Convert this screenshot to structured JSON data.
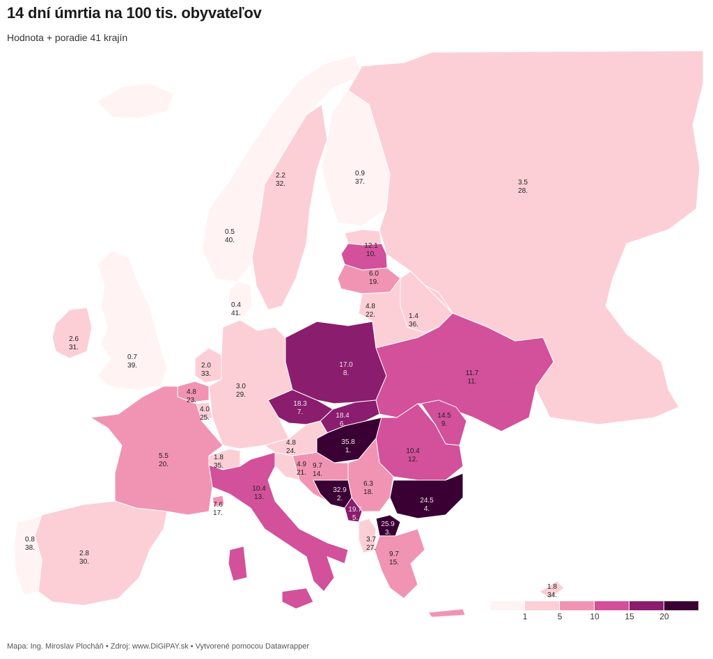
{
  "title": "14 dní úmrtia na 100 tis. obyvateľov",
  "subtitle": "Hodnota + poradie 41 krajín",
  "footer": "Mapa: Ing. Miroslav Plocháň • Zdroj: www.DiGiPAY.sk • Vytvorené pomocou Datawrapper",
  "legend": {
    "colors": [
      "#fff3f4",
      "#fccfd6",
      "#f194b3",
      "#d3509a",
      "#8a1d6e",
      "#3a0034"
    ],
    "ticks": [
      "1",
      "5",
      "10",
      "15",
      "20"
    ]
  },
  "regions": [
    {
      "id": "iceland",
      "value": null,
      "rank": null
    },
    {
      "id": "norway",
      "value": "0.5",
      "rank": "40."
    },
    {
      "id": "sweden",
      "value": "2.2",
      "rank": "32."
    },
    {
      "id": "finland",
      "value": "0.9",
      "rank": "37."
    },
    {
      "id": "russia",
      "value": "3.5",
      "rank": "28."
    },
    {
      "id": "estonia",
      "value": null,
      "rank": null
    },
    {
      "id": "latvia",
      "value": "12.1",
      "rank": "10."
    },
    {
      "id": "lithuania",
      "value": "6.0",
      "rank": "19."
    },
    {
      "id": "denmark",
      "value": "0.4",
      "rank": "41."
    },
    {
      "id": "ireland",
      "value": "2.6",
      "rank": "31."
    },
    {
      "id": "uk",
      "value": "0.7",
      "rank": "39."
    },
    {
      "id": "netherlands",
      "value": "2.0",
      "rank": "33."
    },
    {
      "id": "belgium",
      "value": "4.8",
      "rank": "23."
    },
    {
      "id": "luxembourg",
      "value": "4.0",
      "rank": "25."
    },
    {
      "id": "germany",
      "value": "3.0",
      "rank": "29."
    },
    {
      "id": "poland",
      "value": "17.0",
      "rank": "8."
    },
    {
      "id": "czechia",
      "value": "18.3",
      "rank": "7."
    },
    {
      "id": "slovakia",
      "value": "18.4",
      "rank": "6."
    },
    {
      "id": "hungary",
      "value": "35.8",
      "rank": "1."
    },
    {
      "id": "austria",
      "value": "4.8",
      "rank": "24."
    },
    {
      "id": "switzerland",
      "value": "1.8",
      "rank": "35."
    },
    {
      "id": "france",
      "value": "5.5",
      "rank": "20."
    },
    {
      "id": "belarus",
      "value": "4.8",
      "rank": "22."
    },
    {
      "id": "russia-north",
      "value": "1.4",
      "rank": "36."
    },
    {
      "id": "ukraine",
      "value": "11.7",
      "rank": "11."
    },
    {
      "id": "moldova",
      "value": "14.5",
      "rank": "9."
    },
    {
      "id": "romania",
      "value": "10.4",
      "rank": "12."
    },
    {
      "id": "bulgaria",
      "value": "24.5",
      "rank": "4."
    },
    {
      "id": "serbia",
      "value": "6.3",
      "rank": "18."
    },
    {
      "id": "croatia",
      "value": "9.7",
      "rank": "14."
    },
    {
      "id": "slovenia",
      "value": "4.9",
      "rank": "21."
    },
    {
      "id": "bosnia",
      "value": "32.9",
      "rank": "2."
    },
    {
      "id": "montenegro",
      "value": "19.7",
      "rank": "5."
    },
    {
      "id": "north-macedonia",
      "value": "25.9",
      "rank": "3."
    },
    {
      "id": "albania",
      "value": "3.7",
      "rank": "27."
    },
    {
      "id": "greece",
      "value": "9.7",
      "rank": "15."
    },
    {
      "id": "italy",
      "value": "10.4",
      "rank": "13."
    },
    {
      "id": "monaco",
      "value": "7.6",
      "rank": "17."
    },
    {
      "id": "spain",
      "value": "2.8",
      "rank": "30."
    },
    {
      "id": "portugal",
      "value": "0.8",
      "rank": "38."
    },
    {
      "id": "cyprus",
      "value": "1.8",
      "rank": "34."
    }
  ]
}
